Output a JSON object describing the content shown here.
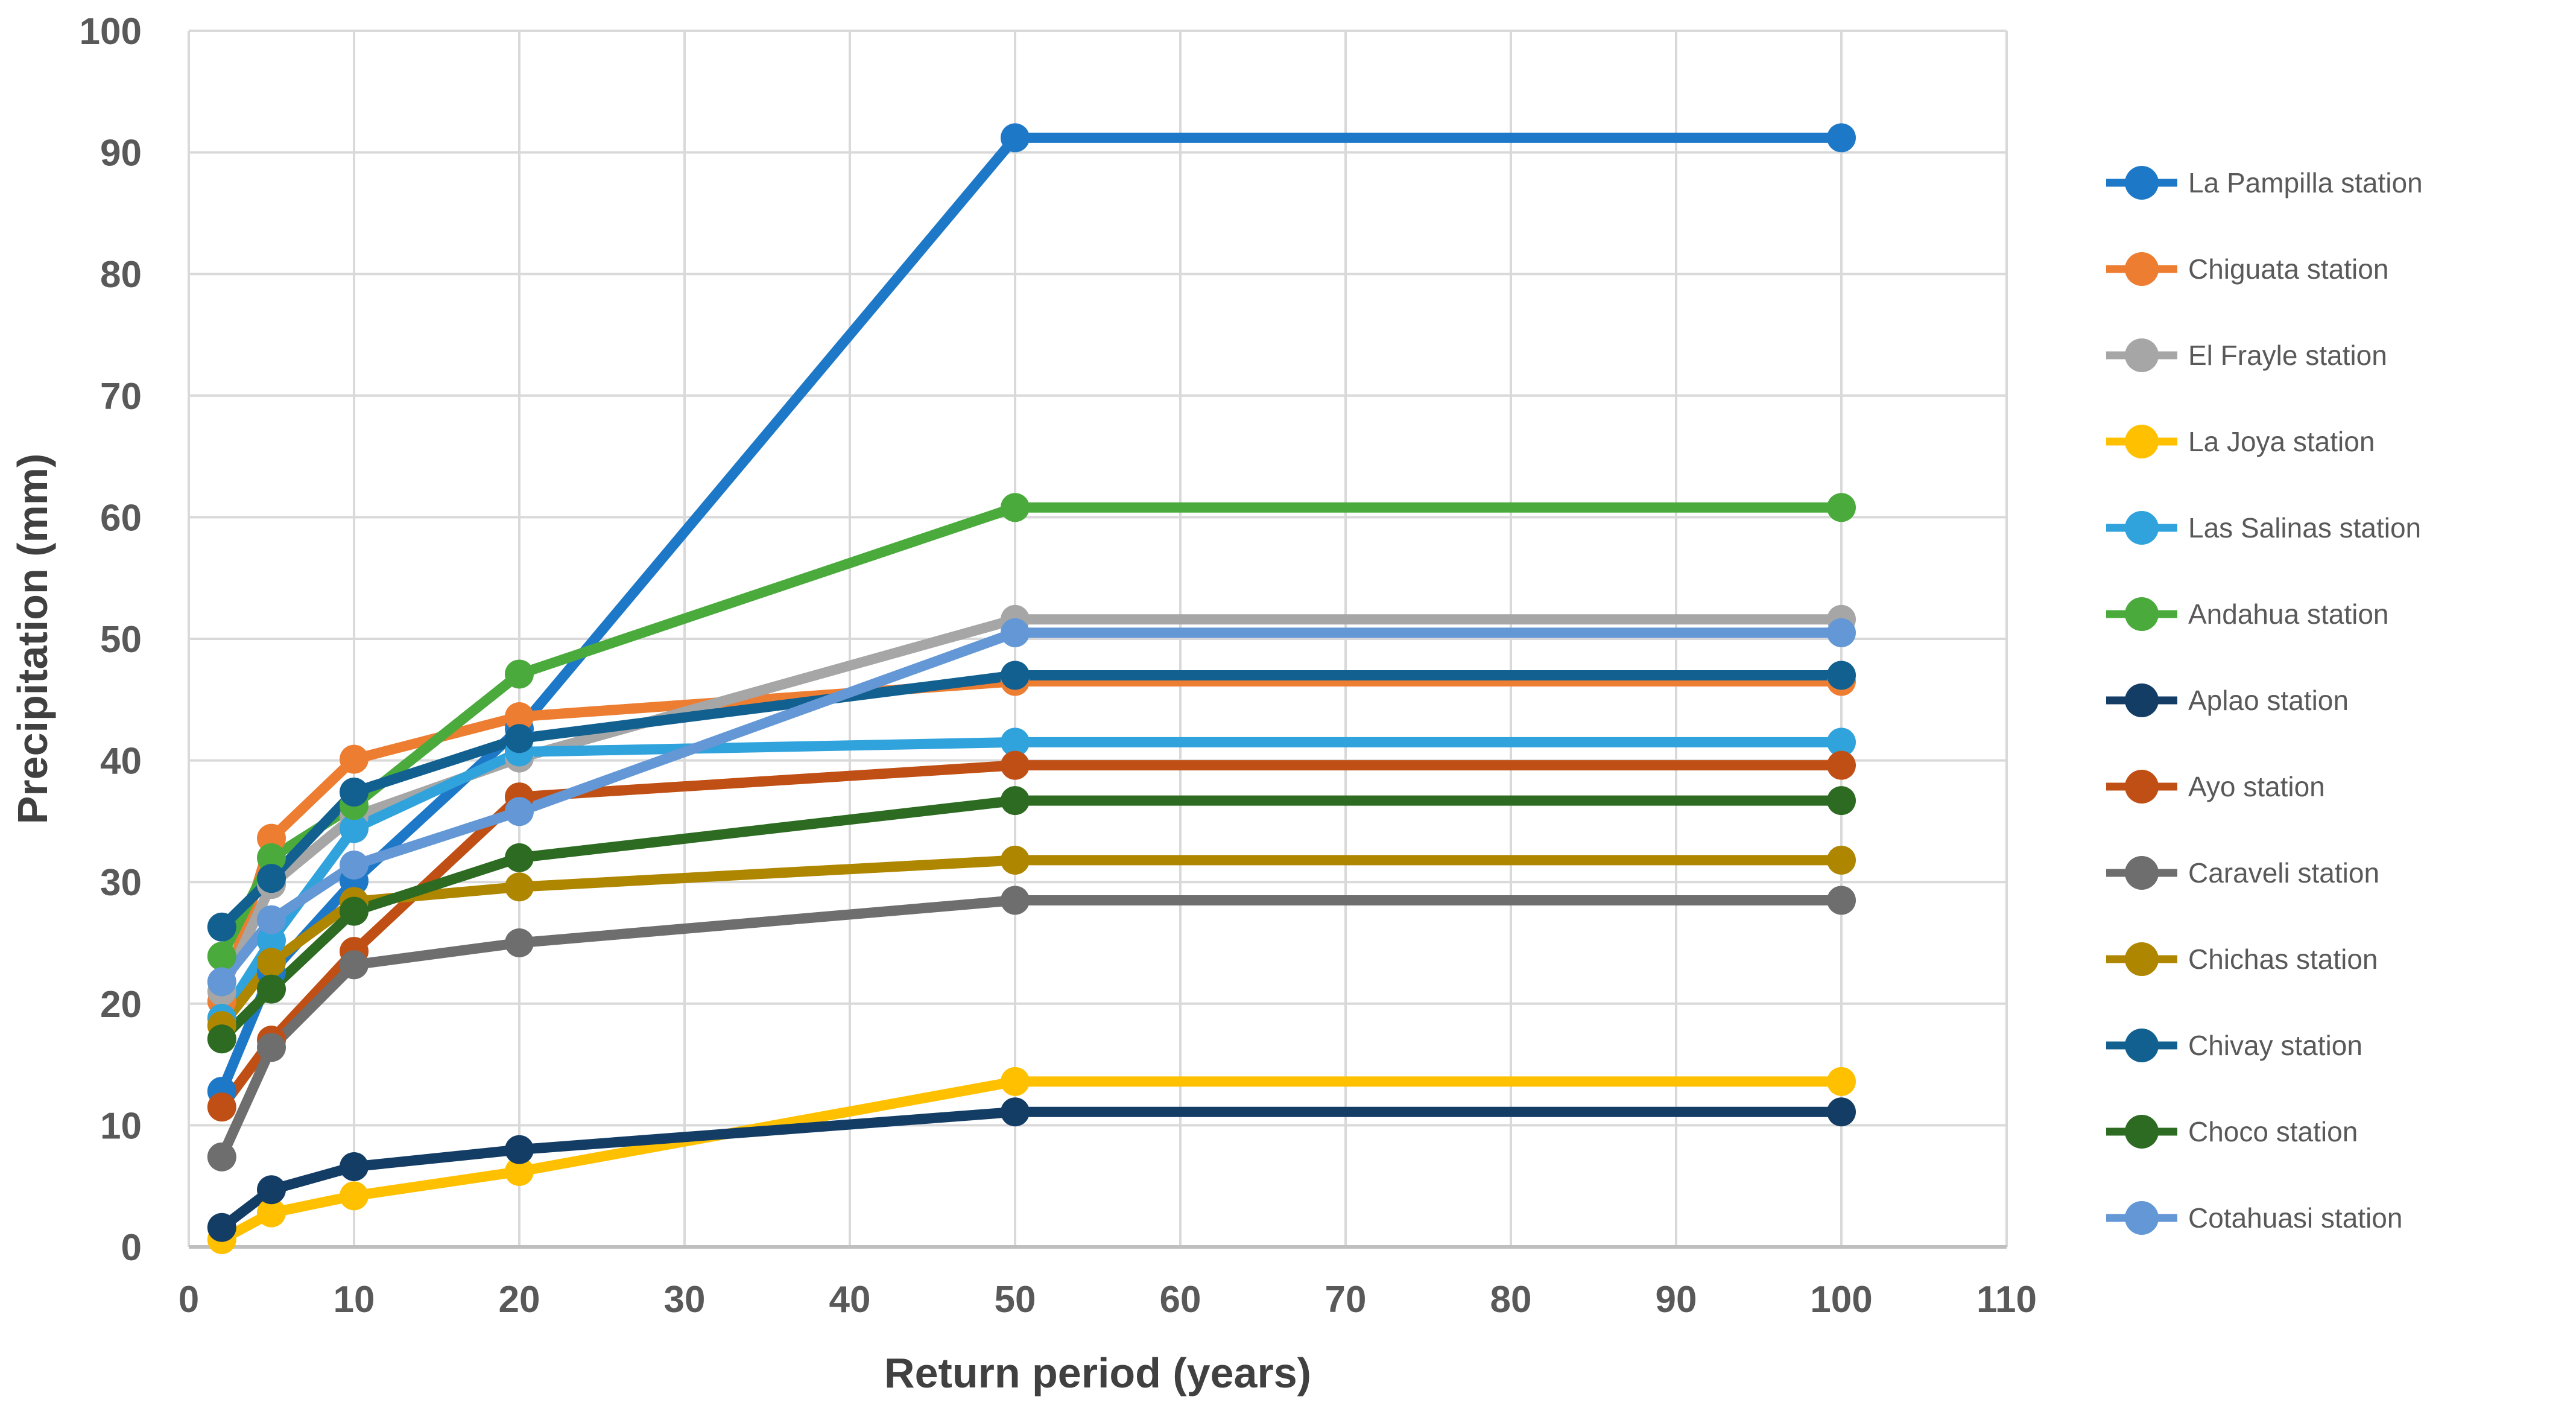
{
  "chart_data": {
    "type": "line",
    "title": "",
    "xlabel": "Return period (years)",
    "ylabel": "Precipitation (mm)",
    "x": [
      2,
      5,
      10,
      20,
      50,
      100
    ],
    "xlim": [
      0,
      110
    ],
    "ylim": [
      0,
      100
    ],
    "x_tick_step": 10,
    "y_tick_step": 10,
    "grid": true,
    "legend_position": "right",
    "gridline_color": "#D9D9D9",
    "axis_line_color": "#BFBFBF",
    "tick_label_color": "#595959",
    "axis_title_color": "#404040",
    "legend_text_color": "#595959",
    "series": [
      {
        "name": "La Pampilla station",
        "color": "#1E78C8",
        "values": [
          12.8,
          22.6,
          30.1,
          42.6,
          91.2,
          91.2
        ]
      },
      {
        "name": "Chiguata station",
        "color": "#ED7D31",
        "values": [
          20.2,
          33.6,
          40.1,
          43.6,
          46.5,
          46.5
        ]
      },
      {
        "name": "El Frayle station",
        "color": "#A6A6A6",
        "values": [
          21.0,
          29.8,
          35.4,
          40.2,
          51.6,
          51.6
        ]
      },
      {
        "name": "La Joya station",
        "color": "#FFC000",
        "values": [
          0.6,
          2.8,
          4.2,
          6.2,
          13.6,
          13.6
        ]
      },
      {
        "name": "Las Salinas station",
        "color": "#30A3DC",
        "values": [
          18.8,
          25.2,
          34.4,
          40.7,
          41.5,
          41.5
        ]
      },
      {
        "name": "Andahua station",
        "color": "#4AAB3C",
        "values": [
          23.9,
          32.0,
          36.3,
          47.1,
          60.8,
          60.8
        ]
      },
      {
        "name": "Aplao station",
        "color": "#143D66",
        "values": [
          1.6,
          4.7,
          6.6,
          8.0,
          11.1,
          11.1
        ]
      },
      {
        "name": "Ayo station",
        "color": "#C04F15",
        "values": [
          11.5,
          17.0,
          24.3,
          37.0,
          39.6,
          39.6
        ]
      },
      {
        "name": "Caraveli station",
        "color": "#6E6E6E",
        "values": [
          7.4,
          16.4,
          23.2,
          25.0,
          28.5,
          28.5
        ]
      },
      {
        "name": "Chichas station",
        "color": "#AF8600",
        "values": [
          18.2,
          23.4,
          28.4,
          29.6,
          31.8,
          31.8
        ]
      },
      {
        "name": "Chivay station",
        "color": "#11608F",
        "values": [
          26.3,
          30.3,
          37.4,
          41.8,
          47.0,
          47.0
        ]
      },
      {
        "name": "Choco station",
        "color": "#2C6B21",
        "values": [
          17.1,
          21.2,
          27.6,
          32.0,
          36.7,
          36.7
        ]
      },
      {
        "name": "Cotahuasi station",
        "color": "#6497D5",
        "values": [
          21.8,
          26.9,
          31.4,
          35.8,
          50.5,
          50.5
        ]
      }
    ]
  }
}
